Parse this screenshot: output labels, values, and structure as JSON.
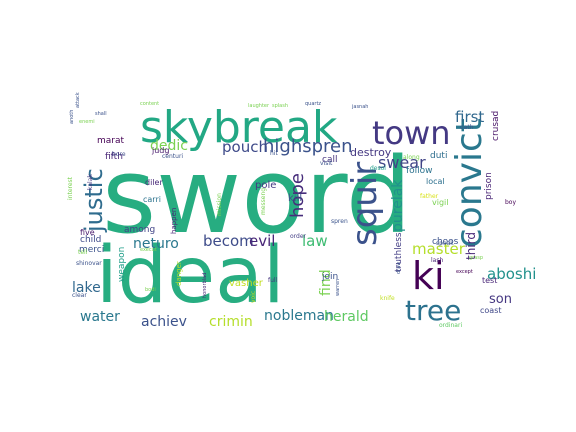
{
  "word_cloud": {
    "words": [
      {
        "text": "sword",
        "color": "#27ad81"
      },
      {
        "text": "ideal",
        "color": "#27ad81"
      },
      {
        "text": "skybreak",
        "color": "#22a884"
      },
      {
        "text": "town",
        "color": "#443983"
      },
      {
        "text": "convict",
        "color": "#2a788e"
      },
      {
        "text": "ki",
        "color": "#440154"
      },
      {
        "text": "squir",
        "color": "#3b528b"
      },
      {
        "text": "tree",
        "color": "#2c728e"
      },
      {
        "text": "justic",
        "color": "#2f6c8e"
      },
      {
        "text": "highspren",
        "color": "#3b528b"
      },
      {
        "text": "pouch",
        "color": "#3e4a89"
      },
      {
        "text": "swear",
        "color": "#414487"
      },
      {
        "text": "first",
        "color": "#31688e"
      },
      {
        "text": "dedic",
        "color": "#7ad151"
      },
      {
        "text": "hope",
        "color": "#472d7b"
      },
      {
        "text": "purelak",
        "color": "#21918c"
      },
      {
        "text": "becom",
        "color": "#3e4c8a"
      },
      {
        "text": "evil",
        "color": "#482677"
      },
      {
        "text": "law",
        "color": "#3fbc73"
      },
      {
        "text": "neturo",
        "color": "#2a788e"
      },
      {
        "text": "master",
        "color": "#b5de2b"
      },
      {
        "text": "aboshi",
        "color": "#21918c"
      },
      {
        "text": "third",
        "color": "#482878"
      },
      {
        "text": "find",
        "color": "#7ad151"
      },
      {
        "text": "son",
        "color": "#453781"
      },
      {
        "text": "lake",
        "color": "#31688e"
      },
      {
        "text": "water",
        "color": "#2a788e"
      },
      {
        "text": "achiev",
        "color": "#3b528b"
      },
      {
        "text": "crimin",
        "color": "#b5de2b"
      },
      {
        "text": "nobleman",
        "color": "#2a788e"
      },
      {
        "text": "herald",
        "color": "#5ec962"
      },
      {
        "text": "destroy",
        "color": "#453882"
      },
      {
        "text": "call",
        "color": "#46337e"
      },
      {
        "text": "kill",
        "color": "#3b528b"
      },
      {
        "text": "pole",
        "color": "#443983"
      },
      {
        "text": "fifth",
        "color": "#482576"
      },
      {
        "text": "marat",
        "color": "#440154"
      },
      {
        "text": "judg",
        "color": "#481a6c"
      },
      {
        "text": "duti",
        "color": "#2e6e8e"
      },
      {
        "text": "follow",
        "color": "#2c728e"
      },
      {
        "text": "crusad",
        "color": "#481467"
      },
      {
        "text": "prison",
        "color": "#482475"
      },
      {
        "text": "choos",
        "color": "#3b528b"
      },
      {
        "text": "truthless",
        "color": "#433e85"
      },
      {
        "text": "join",
        "color": "#3b528b"
      },
      {
        "text": "vasher",
        "color": "#c2df23"
      },
      {
        "text": "merci",
        "color": "#3b528b"
      },
      {
        "text": "child",
        "color": "#3e4a89"
      },
      {
        "text": "five",
        "color": "#48186a"
      },
      {
        "text": "among",
        "color": "#414487"
      },
      {
        "text": "diler",
        "color": "#482878"
      },
      {
        "text": "carri",
        "color": "#2c728e"
      },
      {
        "text": "weapon",
        "color": "#1f9e89"
      },
      {
        "text": "local",
        "color": "#2d708e"
      },
      {
        "text": "vigil",
        "color": "#7ad151"
      },
      {
        "text": "test",
        "color": "#482677"
      },
      {
        "text": "coast",
        "color": "#3f4788"
      },
      {
        "text": "boy",
        "color": "#440154"
      },
      {
        "text": "father",
        "color": "#d8e219"
      },
      {
        "text": "desol",
        "color": "#1f9e89"
      },
      {
        "text": "spren",
        "color": "#3a538b"
      },
      {
        "text": "order",
        "color": "#433e85"
      },
      {
        "text": "messeng",
        "color": "#7ad151"
      },
      {
        "text": "happen",
        "color": "#482475"
      },
      {
        "text": "danger",
        "color": "#b5de2b"
      },
      {
        "text": "shinovar",
        "color": "#3b528b"
      },
      {
        "text": "tell",
        "color": "#7ad151"
      },
      {
        "text": "clear",
        "color": "#3b528b"
      },
      {
        "text": "full",
        "color": "#46337e"
      },
      {
        "text": "lash",
        "color": "#482576"
      },
      {
        "text": "oath",
        "color": "#3b528b"
      },
      {
        "text": "ordinari",
        "color": "#5ec962"
      },
      {
        "text": "centuri",
        "color": "#3b528b"
      },
      {
        "text": "bore",
        "color": "#3e4a89"
      },
      {
        "text": "interest",
        "color": "#7ad151"
      },
      {
        "text": "kalak",
        "color": "#453781"
      },
      {
        "text": "bodi",
        "color": "#7ad151"
      },
      {
        "text": "honorblad",
        "color": "#482878"
      },
      {
        "text": "hit",
        "color": "#3b528b"
      },
      {
        "text": "along",
        "color": "#7ad151"
      },
      {
        "text": "visit",
        "color": "#3b528b"
      },
      {
        "text": "speak",
        "color": "#3b528b"
      },
      {
        "text": "grasp",
        "color": "#7ad151"
      },
      {
        "text": "except",
        "color": "#440154"
      },
      {
        "text": "knife",
        "color": "#c2df23"
      },
      {
        "text": "warren",
        "color": "#3b528b"
      },
      {
        "text": "draw",
        "color": "#3b528b"
      },
      {
        "text": "execut",
        "color": "#7ad151"
      },
      {
        "text": "mission",
        "color": "#7ad151"
      },
      {
        "text": "voic",
        "color": "#c2df23"
      },
      {
        "text": "content",
        "color": "#7ad151"
      },
      {
        "text": "laughter",
        "color": "#7ad151"
      },
      {
        "text": "splash",
        "color": "#7ad151"
      },
      {
        "text": "quartz",
        "color": "#3b528b"
      },
      {
        "text": "jasnah",
        "color": "#3b528b"
      },
      {
        "text": "attack",
        "color": "#3b528b"
      },
      {
        "text": "anoth",
        "color": "#3b528b"
      },
      {
        "text": "enemi",
        "color": "#7ad151"
      },
      {
        "text": "shall",
        "color": "#3b528b"
      }
    ]
  }
}
